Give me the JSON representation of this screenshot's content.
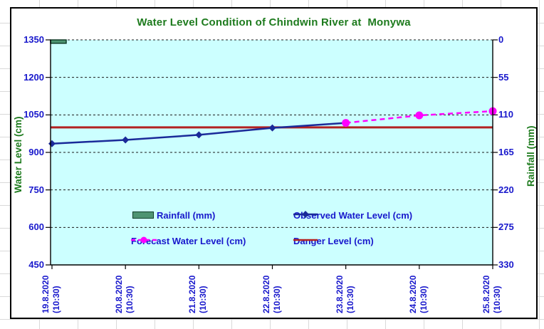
{
  "chart_data": {
    "type": "line",
    "title": "Water Level Condition of Chindwin River at  Monywa",
    "categories": [
      "19.8.2020",
      "20.8.2020",
      "21.8.2020",
      "22.8.2020",
      "23.8.2020",
      "24.8.2020",
      "25.8.2020"
    ],
    "category_sub": "(10:30)",
    "left_axis": {
      "title": "Water Level (cm)",
      "min": 450,
      "max": 1350,
      "step": 150,
      "ticks": [
        450,
        600,
        750,
        900,
        1050,
        1200,
        1350
      ]
    },
    "right_axis": {
      "title": "Rainfall (mm)",
      "min": 0,
      "max": 330,
      "step": 55,
      "inverted": true,
      "ticks": [
        0,
        55,
        110,
        165,
        220,
        275,
        330
      ]
    },
    "series": [
      {
        "name": "Rainfall (mm)",
        "type": "bar",
        "axis": "right",
        "color": "#4e9472",
        "border": "#123c28",
        "values": [
          5,
          null,
          null,
          null,
          null,
          null,
          null
        ]
      },
      {
        "name": "Observed Water Level (cm)",
        "type": "line",
        "axis": "left",
        "color": "#1a2a99",
        "marker": "diamond",
        "values": [
          935,
          950,
          970,
          998,
          1018,
          null,
          null
        ]
      },
      {
        "name": "Forecast Water Level (cm)",
        "type": "line",
        "dash": true,
        "axis": "left",
        "color": "#ff00ff",
        "marker": "circle",
        "values": [
          null,
          null,
          null,
          null,
          1018,
          1048,
          1065
        ]
      },
      {
        "name": "Danger Level (cm)",
        "type": "hline",
        "axis": "left",
        "color": "#b22222",
        "value": 1000
      }
    ],
    "plot_bg": "#ccffff",
    "grid": "dashed-black",
    "legend_position": "inside-plot"
  }
}
